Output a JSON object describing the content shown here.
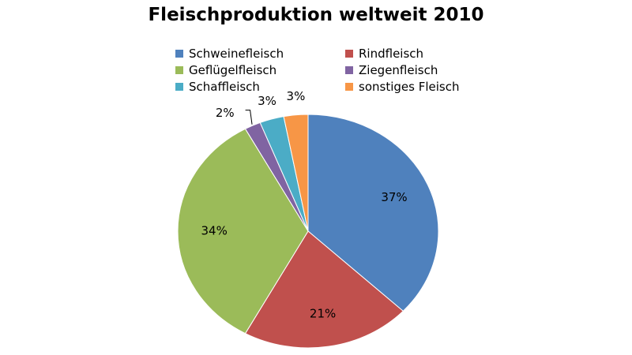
{
  "chart_data": {
    "type": "pie",
    "title": "Fleischproduktion weltweit 2010",
    "legend_position": "top",
    "categories": [
      "Schweinefleisch",
      "Rindfleisch",
      "Geflügelfleisch",
      "Ziegenfleisch",
      "Schaffleisch",
      "sonstiges Fleisch"
    ],
    "values": [
      37,
      21,
      34,
      2,
      3,
      3
    ],
    "labels": [
      "37%",
      "21%",
      "34%",
      "2%",
      "3%",
      "3%"
    ],
    "colors": [
      "#4f81bd",
      "#c0504d",
      "#9bbb59",
      "#8064a2",
      "#4bacc6",
      "#f79646"
    ]
  }
}
